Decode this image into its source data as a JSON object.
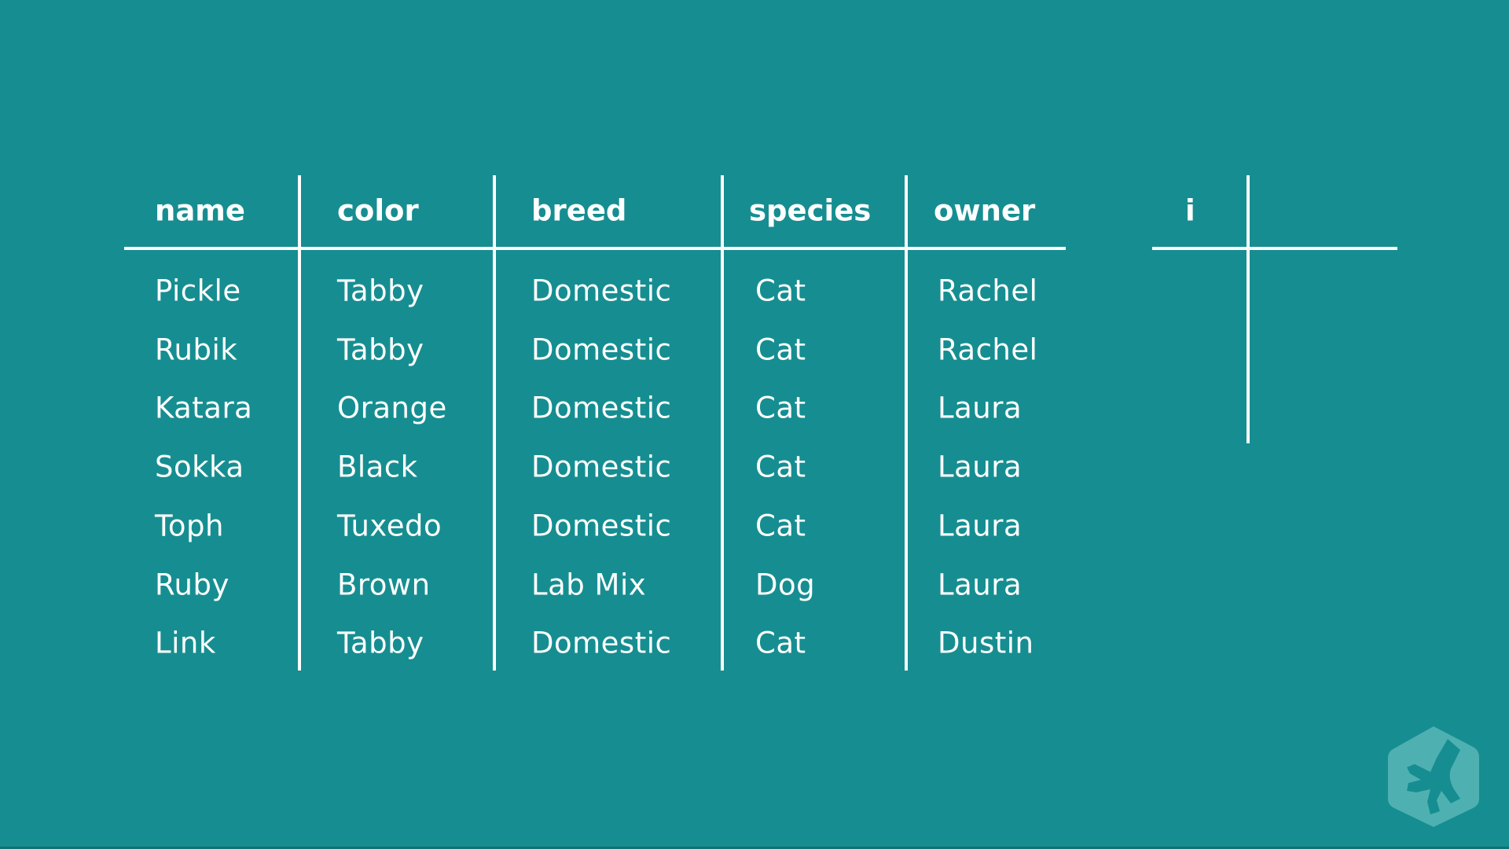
{
  "table": {
    "headers": [
      "name",
      "color",
      "breed",
      "species",
      "owner"
    ],
    "rows": [
      [
        "Pickle",
        "Tabby",
        "Domestic",
        "Cat",
        "Rachel"
      ],
      [
        "Rubik",
        "Tabby",
        "Domestic",
        "Cat",
        "Rachel"
      ],
      [
        "Katara",
        "Orange",
        "Domestic",
        "Cat",
        "Laura"
      ],
      [
        "Sokka",
        "Black",
        "Domestic",
        "Cat",
        "Laura"
      ],
      [
        "Toph",
        "Tuxedo",
        "Domestic",
        "Cat",
        "Laura"
      ],
      [
        "Ruby",
        "Brown",
        "Lab Mix",
        "Dog",
        "Laura"
      ],
      [
        "Link",
        "Tabby",
        "Domestic",
        "Cat",
        "Dustin"
      ]
    ]
  },
  "index_table": {
    "header": "i"
  },
  "colors": {
    "background": "#168e91",
    "lines": "#ffffff",
    "logo": "#4fb0b2"
  },
  "logo": {
    "icon": "treehouse-frog-logo-icon"
  }
}
